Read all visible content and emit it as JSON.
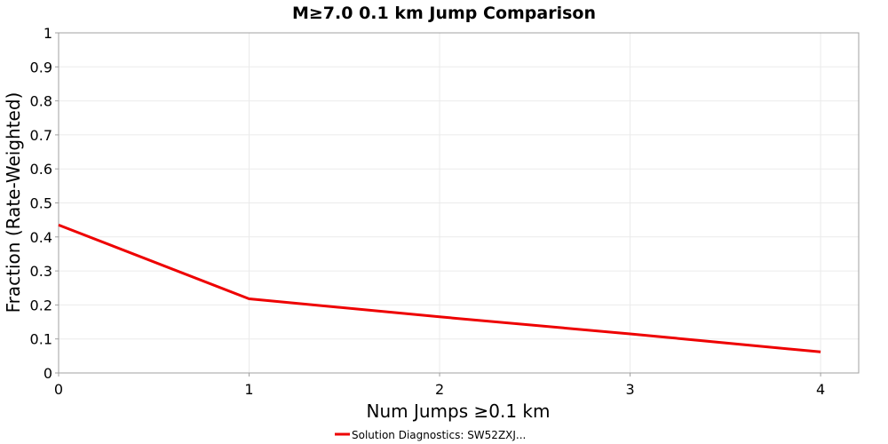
{
  "chart_data": {
    "type": "line",
    "title": "M≥7.0 0.1 km Jump Comparison",
    "xlabel": "Num Jumps ≥0.1 km",
    "ylabel": "Fraction (Rate-Weighted)",
    "xlim": [
      0,
      4.2
    ],
    "ylim": [
      0,
      1
    ],
    "x_ticks": [
      "0",
      "1",
      "2",
      "3",
      "4"
    ],
    "y_ticks": [
      "0",
      "0.1",
      "0.2",
      "0.3",
      "0.4",
      "0.5",
      "0.6",
      "0.7",
      "0.8",
      "0.9",
      "1"
    ],
    "grid": true,
    "legend_position": "bottom-center",
    "series": [
      {
        "name": "Solution Diagnostics: SW52ZXJ...",
        "color": "#ee0000",
        "x": [
          0,
          1,
          2,
          3,
          4
        ],
        "y": [
          0.435,
          0.218,
          0.165,
          0.115,
          0.062
        ]
      }
    ]
  }
}
